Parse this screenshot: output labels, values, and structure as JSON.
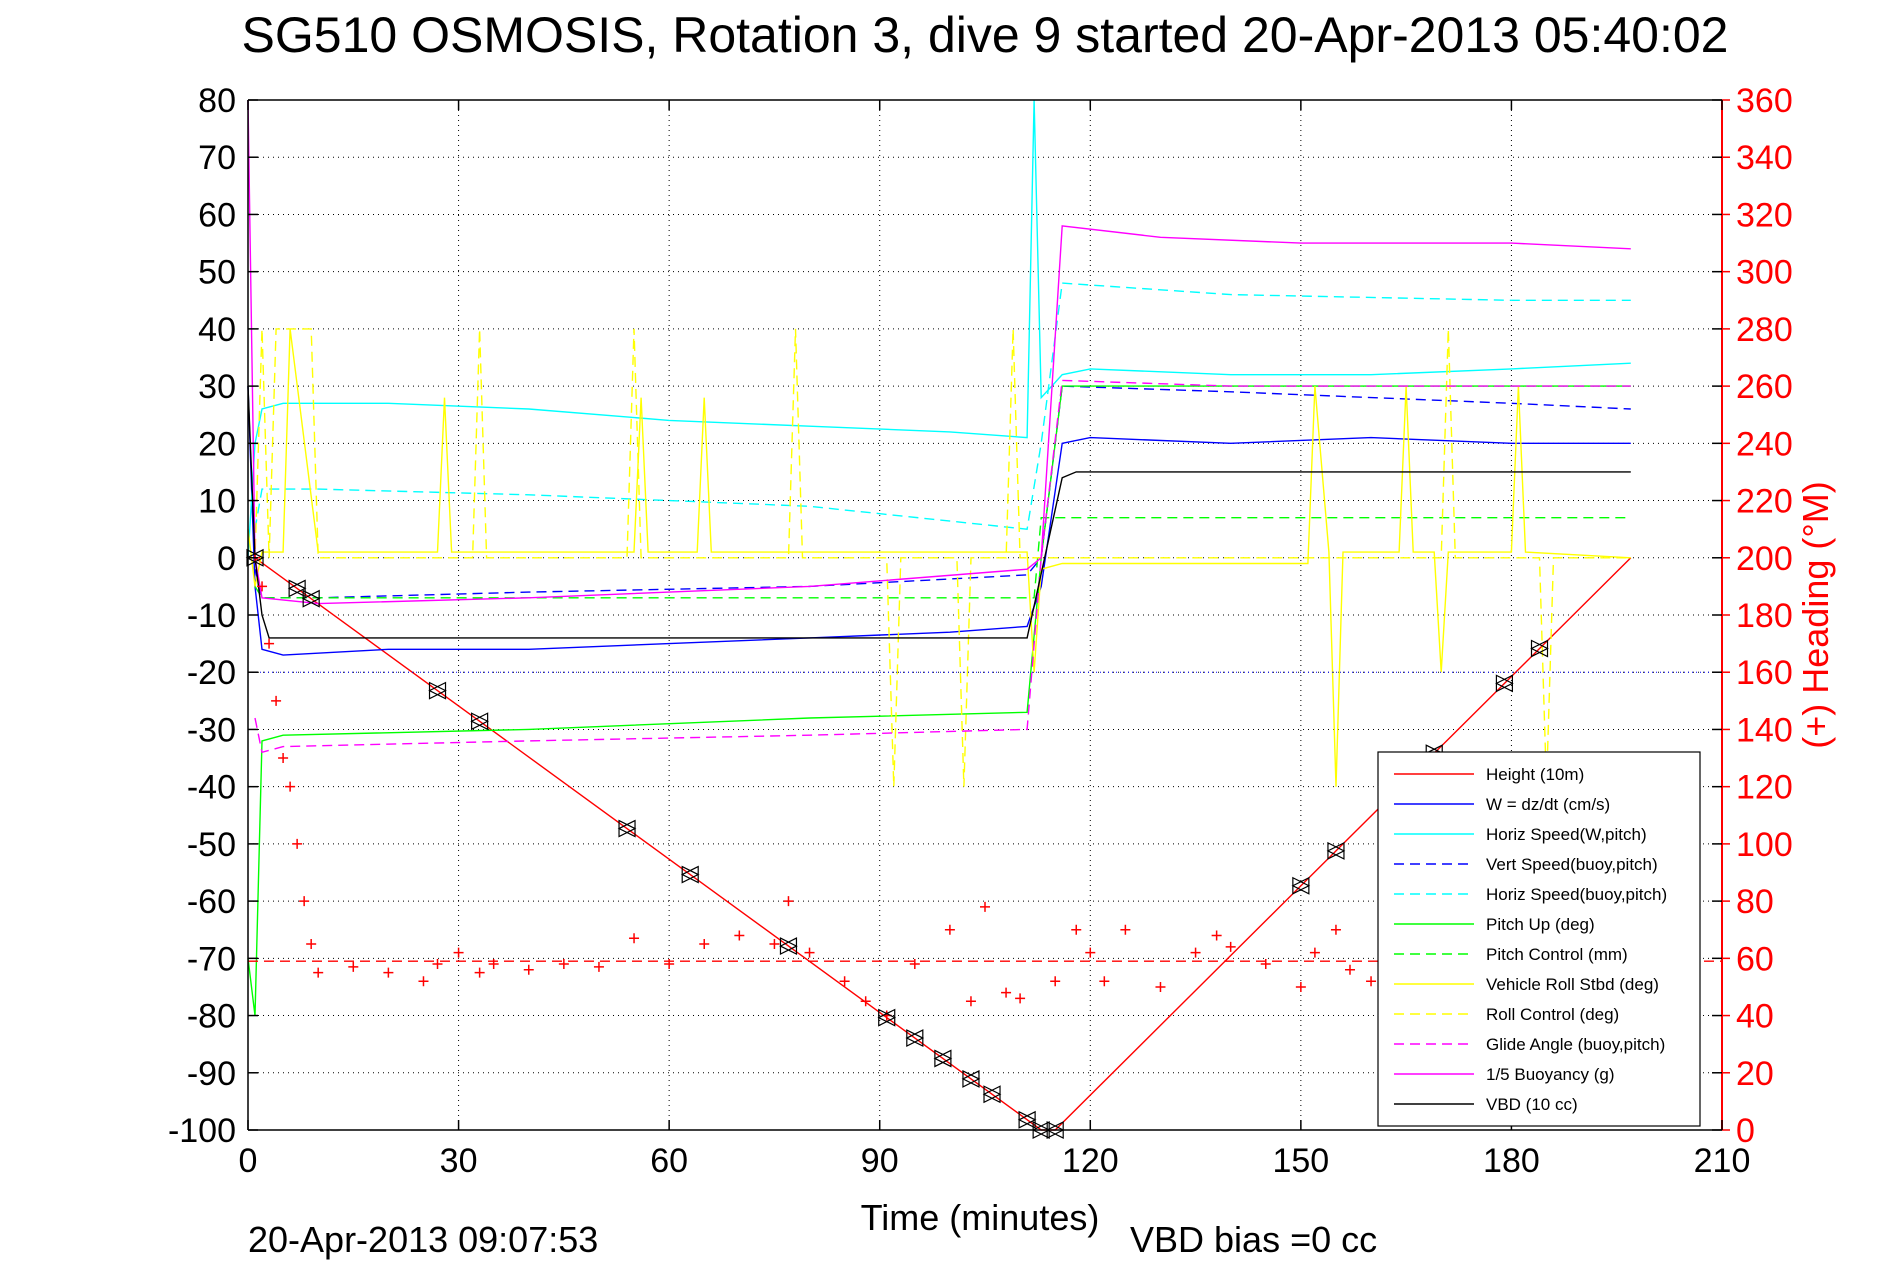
{
  "chart_data": {
    "type": "line",
    "title": "SG510 OSMOSIS, Rotation 3, dive 9 started 20-Apr-2013 05:40:02",
    "xlabel": "Time (minutes)",
    "ylabel": "",
    "ylabel_right": "(+) Heading (°M)",
    "xlim": [
      0,
      210
    ],
    "ylim": [
      -100,
      80
    ],
    "ylim_right": [
      0,
      360
    ],
    "xticks": [
      "0",
      "30",
      "60",
      "90",
      "120",
      "150",
      "180",
      "210"
    ],
    "yticks": [
      "80",
      "70",
      "60",
      "50",
      "40",
      "30",
      "20",
      "10",
      "0",
      "-10",
      "-20",
      "-30",
      "-40",
      "-50",
      "-60",
      "-70",
      "-80",
      "-90",
      "-100"
    ],
    "yticks_right": [
      "360",
      "340",
      "320",
      "300",
      "280",
      "260",
      "240",
      "220",
      "200",
      "180",
      "160",
      "140",
      "120",
      "100",
      "80",
      "60",
      "40",
      "20",
      "0"
    ],
    "grid": true,
    "legend_position": "bottom-right",
    "footer_date": "20-Apr-2013 09:07:53",
    "footer_bias": "VBD bias =0 cc",
    "colors": {
      "red": "#ff0000",
      "blue": "#0000ff",
      "cyan": "#00ffff",
      "green": "#00ff00",
      "yellow": "#ffff00",
      "magenta": "#ff00ff",
      "black": "#000000"
    },
    "series": [
      {
        "name": "Height (10m)",
        "color": "#ff0000",
        "dash": "solid",
        "x": [
          0,
          1,
          113,
          115,
          197
        ],
        "y": [
          0,
          0,
          -100,
          -100,
          0
        ]
      },
      {
        "name": "W = dz/dt (cm/s)",
        "color": "#0000ff",
        "dash": "solid",
        "x": [
          0,
          1,
          2,
          5,
          20,
          40,
          60,
          80,
          100,
          111,
          113,
          116,
          120,
          140,
          160,
          180,
          197
        ],
        "y": [
          30,
          -5,
          -16,
          -17,
          -16,
          -16,
          -15,
          -14,
          -13,
          -12,
          -5,
          20,
          21,
          20,
          21,
          20,
          20
        ]
      },
      {
        "name": "Horiz Speed(W,pitch)",
        "color": "#00ffff",
        "dash": "solid",
        "x": [
          0,
          1,
          2,
          5,
          20,
          40,
          60,
          80,
          100,
          111,
          112,
          113,
          116,
          120,
          140,
          160,
          180,
          197
        ],
        "y": [
          0,
          20,
          26,
          27,
          27,
          26,
          24,
          23,
          22,
          21,
          80,
          28,
          32,
          33,
          32,
          32,
          33,
          34
        ]
      },
      {
        "name": "Vert Speed(buoy,pitch)",
        "color": "#0000ff",
        "dash": "dashed",
        "x": [
          1,
          2,
          10,
          40,
          80,
          111,
          113,
          116,
          140,
          180,
          197
        ],
        "y": [
          -2,
          -7,
          -7,
          -6,
          -5,
          -3,
          0,
          30,
          29,
          27,
          26
        ]
      },
      {
        "name": "Horiz Speed(buoy,pitch)",
        "color": "#00ffff",
        "dash": "dashed",
        "x": [
          1,
          2,
          10,
          40,
          80,
          111,
          113,
          116,
          140,
          180,
          197
        ],
        "y": [
          5,
          12,
          12,
          11,
          9,
          5,
          20,
          48,
          46,
          45,
          45
        ]
      },
      {
        "name": "Pitch Up (deg)",
        "color": "#00ff00",
        "dash": "solid",
        "x": [
          0,
          1,
          2,
          5,
          40,
          80,
          111,
          113,
          116,
          140,
          180,
          197
        ],
        "y": [
          -70,
          -80,
          -32,
          -31,
          -30,
          -28,
          -27,
          0,
          30,
          30,
          30,
          30
        ]
      },
      {
        "name": "Pitch Control (mm)",
        "color": "#00ff00",
        "dash": "dashed",
        "x": [
          1,
          2,
          10,
          111,
          112,
          113,
          116,
          197
        ],
        "y": [
          -5,
          -7,
          -7,
          -7,
          -7,
          7,
          7,
          7
        ]
      },
      {
        "name": "Vehicle Roll Stbd (deg)",
        "color": "#ffff00",
        "dash": "solid",
        "x": [
          0,
          1,
          2,
          5,
          6,
          10,
          27,
          28,
          29,
          55,
          56,
          57,
          64,
          65,
          66,
          91,
          92,
          93,
          103,
          104,
          105,
          111,
          112,
          113,
          116,
          140,
          150,
          151,
          152,
          154,
          155,
          156,
          164,
          165,
          166,
          169,
          170,
          171,
          180,
          181,
          182,
          197
        ],
        "y": [
          5,
          -5,
          1,
          1,
          40,
          1,
          1,
          28,
          1,
          1,
          28,
          1,
          1,
          28,
          1,
          1,
          1,
          1,
          1,
          1,
          1,
          1,
          -20,
          -2,
          -1,
          -1,
          -1,
          -1,
          30,
          1,
          -40,
          1,
          1,
          30,
          1,
          1,
          -20,
          1,
          1,
          30,
          1,
          0
        ]
      },
      {
        "name": "Roll Control (deg)",
        "color": "#ffff00",
        "dash": "dashed",
        "x": [
          0,
          1,
          2,
          3,
          4,
          8,
          9,
          10,
          32,
          33,
          34,
          54,
          55,
          56,
          77,
          78,
          79,
          91,
          92,
          93,
          101,
          102,
          103,
          108,
          109,
          110,
          112,
          113,
          150,
          170,
          171,
          172,
          184,
          185,
          186,
          197
        ],
        "y": [
          0,
          0,
          40,
          0,
          40,
          40,
          40,
          0,
          0,
          40,
          0,
          0,
          40,
          0,
          0,
          40,
          0,
          0,
          -40,
          0,
          0,
          -40,
          0,
          0,
          40,
          0,
          0,
          0,
          0,
          0,
          40,
          0,
          0,
          -40,
          0,
          0
        ]
      },
      {
        "name": "Glide Angle (buoy,pitch)",
        "color": "#ff00ff",
        "dash": "dashed",
        "x": [
          1,
          2,
          5,
          40,
          80,
          111,
          113,
          116,
          140,
          180,
          197
        ],
        "y": [
          -28,
          -34,
          -33,
          -32,
          -31,
          -30,
          0,
          31,
          30,
          30,
          30
        ]
      },
      {
        "name": "1/5 Buoyancy (g)",
        "color": "#ff00ff",
        "dash": "solid",
        "x": [
          0,
          1,
          2,
          10,
          40,
          80,
          111,
          113,
          116,
          130,
          150,
          180,
          197
        ],
        "y": [
          80,
          0,
          -7,
          -8,
          -7,
          -5,
          -2,
          0,
          58,
          56,
          55,
          55,
          54
        ]
      },
      {
        "name": "VBD (10 cc)",
        "color": "#000000",
        "dash": "solid",
        "x": [
          0,
          1,
          2,
          3,
          5,
          111,
          116,
          118,
          197
        ],
        "y": [
          30,
          0,
          -10,
          -14,
          -14,
          -14,
          14,
          15,
          15
        ]
      },
      {
        "name": "Heading",
        "color": "#ff0000",
        "style": "markers-plus",
        "axis": "right",
        "x": [
          1,
          2,
          3,
          4,
          5,
          6,
          7,
          8,
          9,
          10,
          15,
          20,
          25,
          27,
          30,
          33,
          35,
          40,
          45,
          50,
          55,
          60,
          65,
          70,
          75,
          77,
          80,
          85,
          88,
          91,
          95,
          100,
          103,
          105,
          108,
          110,
          115,
          118,
          120,
          122,
          125,
          130,
          135,
          138,
          140,
          145,
          150,
          152,
          155,
          157,
          160
        ],
        "y": [
          200,
          190,
          170,
          150,
          130,
          120,
          100,
          80,
          65,
          55,
          57,
          55,
          52,
          58,
          62,
          55,
          58,
          56,
          58,
          57,
          67,
          58,
          65,
          68,
          65,
          80,
          62,
          52,
          45,
          40,
          58,
          70,
          45,
          78,
          48,
          46,
          52,
          70,
          62,
          52,
          70,
          50,
          62,
          68,
          64,
          58,
          50,
          62,
          70,
          56,
          52
        ]
      }
    ],
    "height_markers": {
      "x": [
        1,
        7,
        9,
        27,
        33,
        54,
        63,
        77,
        91,
        95,
        99,
        103,
        106,
        111,
        113,
        115,
        150,
        155,
        169,
        179,
        184
      ]
    }
  }
}
